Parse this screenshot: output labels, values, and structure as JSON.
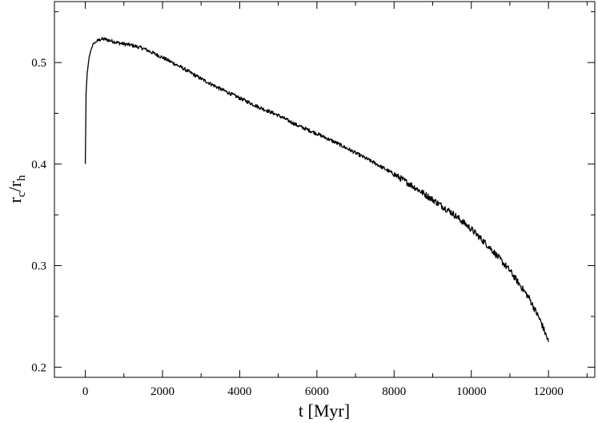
{
  "chart_data": {
    "type": "line",
    "title": "",
    "xlabel": "t [Myr]",
    "ylabel": {
      "main": "r",
      "sub1": "c",
      "sep": "/r",
      "sub2": "h"
    },
    "xlim": [
      -800,
      13200
    ],
    "ylim": [
      0.19,
      0.56
    ],
    "xticks": [
      0,
      2000,
      4000,
      6000,
      8000,
      10000,
      12000
    ],
    "xtick_labels": [
      "0",
      "2000",
      "4000",
      "6000",
      "8000",
      "10000",
      "12000"
    ],
    "yticks": [
      0.2,
      0.3,
      0.4,
      0.5
    ],
    "ytick_labels": [
      "0.2",
      "0.3",
      "0.4",
      "0.5"
    ],
    "grid": false,
    "line_color": "#000000",
    "series": [
      {
        "x": [
          0,
          20,
          50,
          100,
          150,
          200,
          300,
          400,
          500,
          700,
          900,
          1200,
          1500,
          2000,
          2500,
          3000,
          3500,
          4000,
          4500,
          5000,
          5500,
          6000,
          6500,
          7000,
          7500,
          8000,
          8500,
          9000,
          9500,
          10000,
          10500,
          11000,
          11500,
          11800,
          12000
        ],
        "y": [
          0.4,
          0.47,
          0.49,
          0.505,
          0.513,
          0.518,
          0.521,
          0.523,
          0.523,
          0.521,
          0.519,
          0.517,
          0.514,
          0.505,
          0.495,
          0.484,
          0.474,
          0.465,
          0.456,
          0.448,
          0.438,
          0.43,
          0.421,
          0.411,
          0.401,
          0.39,
          0.378,
          0.365,
          0.352,
          0.336,
          0.317,
          0.295,
          0.268,
          0.245,
          0.225
        ]
      }
    ]
  }
}
